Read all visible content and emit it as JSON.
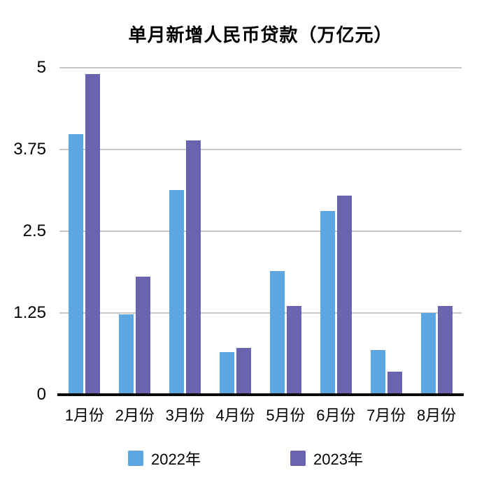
{
  "chart_data": {
    "type": "bar",
    "title": "单月新增人民币贷款（万亿元）",
    "categories": [
      "1月份",
      "2月份",
      "3月份",
      "4月份",
      "5月份",
      "6月份",
      "7月份",
      "8月份"
    ],
    "series": [
      {
        "name": "2022年",
        "color": "#5ea6df",
        "values": [
          3.98,
          1.23,
          3.13,
          0.65,
          1.89,
          2.81,
          0.68,
          1.25
        ]
      },
      {
        "name": "2023年",
        "color": "#6a64ae",
        "values": [
          4.9,
          1.81,
          3.89,
          0.72,
          1.36,
          3.05,
          0.35,
          1.36
        ]
      }
    ],
    "ylim": [
      0,
      5
    ],
    "yticks": [
      "0",
      "1.25",
      "2.5",
      "3.75",
      "5"
    ],
    "xlabel": "",
    "ylabel": "",
    "grid": true,
    "legend_position": "bottom",
    "grid_color": "#c6c6c6",
    "axis_color": "#0b0b0b"
  }
}
